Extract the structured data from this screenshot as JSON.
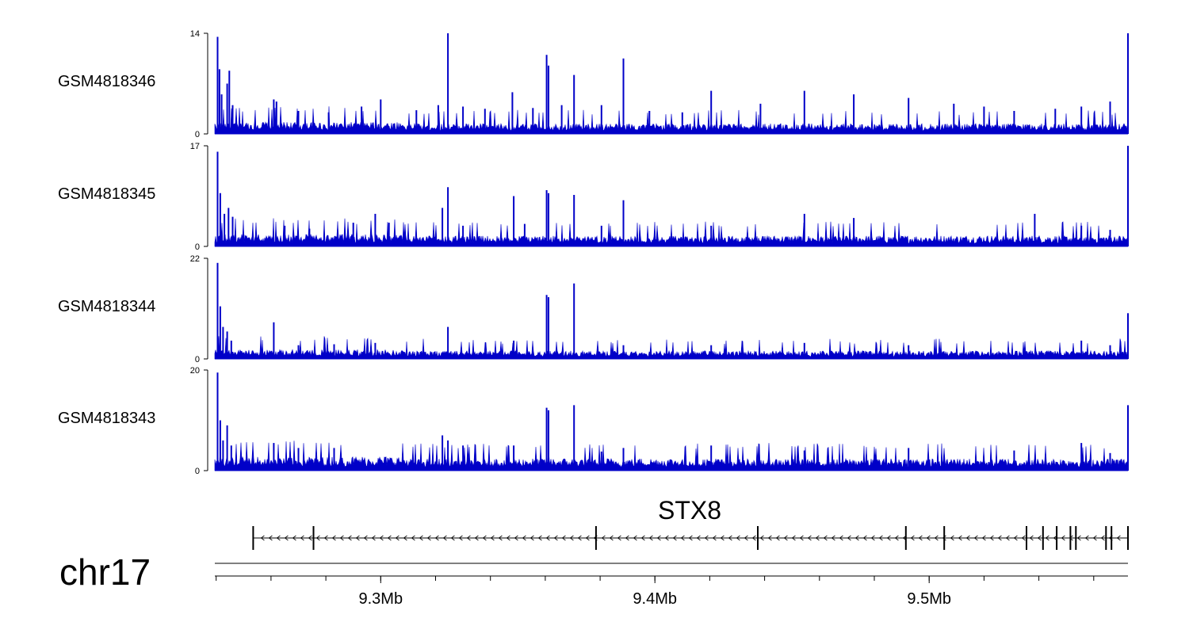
{
  "chart_data": {
    "type": "area",
    "title": "",
    "tracks": [
      {
        "name": "GSM4818346",
        "ymax": 14,
        "ymin": 0,
        "baseline": 1.2,
        "tail_peaks": [
          [
            9.2405,
            13.5
          ],
          [
            9.2412,
            9.0
          ],
          [
            9.242,
            5.5
          ],
          [
            9.244,
            7.0
          ],
          [
            9.2448,
            8.8
          ],
          [
            9.246,
            4.0
          ]
        ],
        "peaks": [
          [
            9.261,
            4.8
          ],
          [
            9.262,
            4.5
          ],
          [
            9.27,
            3.2
          ],
          [
            9.281,
            3.0
          ],
          [
            9.293,
            3.8
          ],
          [
            9.3,
            4.8
          ],
          [
            9.313,
            3.3
          ],
          [
            9.321,
            4.0
          ],
          [
            9.3245,
            14.0
          ],
          [
            9.33,
            3.8
          ],
          [
            9.338,
            3.5
          ],
          [
            9.348,
            5.8
          ],
          [
            9.3555,
            3.6
          ],
          [
            9.3605,
            11.0
          ],
          [
            9.3612,
            9.5
          ],
          [
            9.366,
            4.0
          ],
          [
            9.3705,
            8.2
          ],
          [
            9.3805,
            4.0
          ],
          [
            9.3885,
            10.5
          ],
          [
            9.398,
            3.2
          ],
          [
            9.41,
            3.0
          ],
          [
            9.4205,
            6.0
          ],
          [
            9.4385,
            4.2
          ],
          [
            9.4545,
            6.0
          ],
          [
            9.4725,
            5.5
          ],
          [
            9.4925,
            5.0
          ],
          [
            9.509,
            4.2
          ],
          [
            9.52,
            3.8
          ],
          [
            9.531,
            3.2
          ],
          [
            9.546,
            3.5
          ],
          [
            9.5555,
            3.8
          ],
          [
            9.566,
            4.5
          ]
        ],
        "end_peak": [
          9.5725,
          14.0
        ]
      },
      {
        "name": "GSM4818345",
        "ymax": 17,
        "ymin": 0,
        "baseline": 1.5,
        "tail_peaks": [
          [
            9.2405,
            16.0
          ],
          [
            9.2415,
            9.0
          ],
          [
            9.243,
            5.5
          ],
          [
            9.2445,
            6.5
          ],
          [
            9.246,
            5.0
          ]
        ],
        "peaks": [
          [
            9.265,
            3.5
          ],
          [
            9.274,
            3.0
          ],
          [
            9.29,
            4.0
          ],
          [
            9.298,
            5.5
          ],
          [
            9.303,
            4.0
          ],
          [
            9.3225,
            6.5
          ],
          [
            9.3245,
            10.0
          ],
          [
            9.33,
            3.5
          ],
          [
            9.3485,
            8.5
          ],
          [
            9.3525,
            3.8
          ],
          [
            9.3605,
            9.5
          ],
          [
            9.3612,
            9.0
          ],
          [
            9.3705,
            8.7
          ],
          [
            9.3805,
            3.5
          ],
          [
            9.3885,
            7.8
          ],
          [
            9.4205,
            3.5
          ],
          [
            9.4545,
            5.5
          ],
          [
            9.4725,
            4.8
          ],
          [
            9.5385,
            5.5
          ],
          [
            9.5555,
            3.5
          ],
          [
            9.566,
            2.8
          ]
        ],
        "end_peak": [
          9.5725,
          17.0
        ]
      },
      {
        "name": "GSM4818344",
        "ymax": 22,
        "ymin": 0,
        "baseline": 1.5,
        "tail_peaks": [
          [
            9.2405,
            21.0
          ],
          [
            9.2415,
            11.5
          ],
          [
            9.2425,
            7.0
          ],
          [
            9.244,
            6.0
          ],
          [
            9.2455,
            4.0
          ]
        ],
        "peaks": [
          [
            9.261,
            8.0
          ],
          [
            9.27,
            3.0
          ],
          [
            9.283,
            3.2
          ],
          [
            9.298,
            3.5
          ],
          [
            9.3245,
            7.0
          ],
          [
            9.3485,
            4.0
          ],
          [
            9.3605,
            14.0
          ],
          [
            9.3612,
            13.5
          ],
          [
            9.3705,
            16.5
          ],
          [
            9.3885,
            3.0
          ],
          [
            9.4205,
            3.0
          ],
          [
            9.4545,
            3.5
          ],
          [
            9.4925,
            3.0
          ],
          [
            9.5555,
            4.0
          ],
          [
            9.566,
            3.0
          ]
        ],
        "end_peak": [
          9.5725,
          10.0
        ]
      },
      {
        "name": "GSM4818343",
        "ymax": 20,
        "ymin": 0,
        "baseline": 2.0,
        "tail_peaks": [
          [
            9.2405,
            19.5
          ],
          [
            9.2415,
            10.0
          ],
          [
            9.2425,
            6.0
          ],
          [
            9.244,
            9.0
          ],
          [
            9.2455,
            5.0
          ]
        ],
        "peaks": [
          [
            9.261,
            5.5
          ],
          [
            9.27,
            4.5
          ],
          [
            9.283,
            4.5
          ],
          [
            9.3225,
            7.0
          ],
          [
            9.3245,
            6.0
          ],
          [
            9.33,
            5.0
          ],
          [
            9.3485,
            5.0
          ],
          [
            9.3605,
            12.5
          ],
          [
            9.3612,
            12.0
          ],
          [
            9.3705,
            13.0
          ],
          [
            9.3805,
            3.8
          ],
          [
            9.3885,
            4.5
          ],
          [
            9.4205,
            5.0
          ],
          [
            9.4545,
            4.0
          ],
          [
            9.4925,
            4.5
          ],
          [
            9.531,
            4.0
          ],
          [
            9.5555,
            5.5
          ],
          [
            9.566,
            3.5
          ]
        ],
        "end_peak": [
          9.5725,
          13.0
        ]
      }
    ],
    "gene": {
      "name": "STX8",
      "strand": "-",
      "start": 9.2535,
      "end": 9.5725,
      "exons": [
        9.2535,
        9.2755,
        9.3785,
        9.4375,
        9.4915,
        9.5055,
        9.5355,
        9.5415,
        9.5465,
        9.5515,
        9.5535,
        9.5645,
        9.5665,
        9.5725
      ]
    },
    "chromosome": "chr17",
    "xlabel": "",
    "x_ticks": [
      "9.3Mb",
      "9.4Mb",
      "9.5Mb"
    ],
    "x_tick_values": [
      9.3,
      9.4,
      9.5
    ],
    "x_range": [
      9.2395,
      9.5725
    ],
    "color": "#0000c8"
  }
}
